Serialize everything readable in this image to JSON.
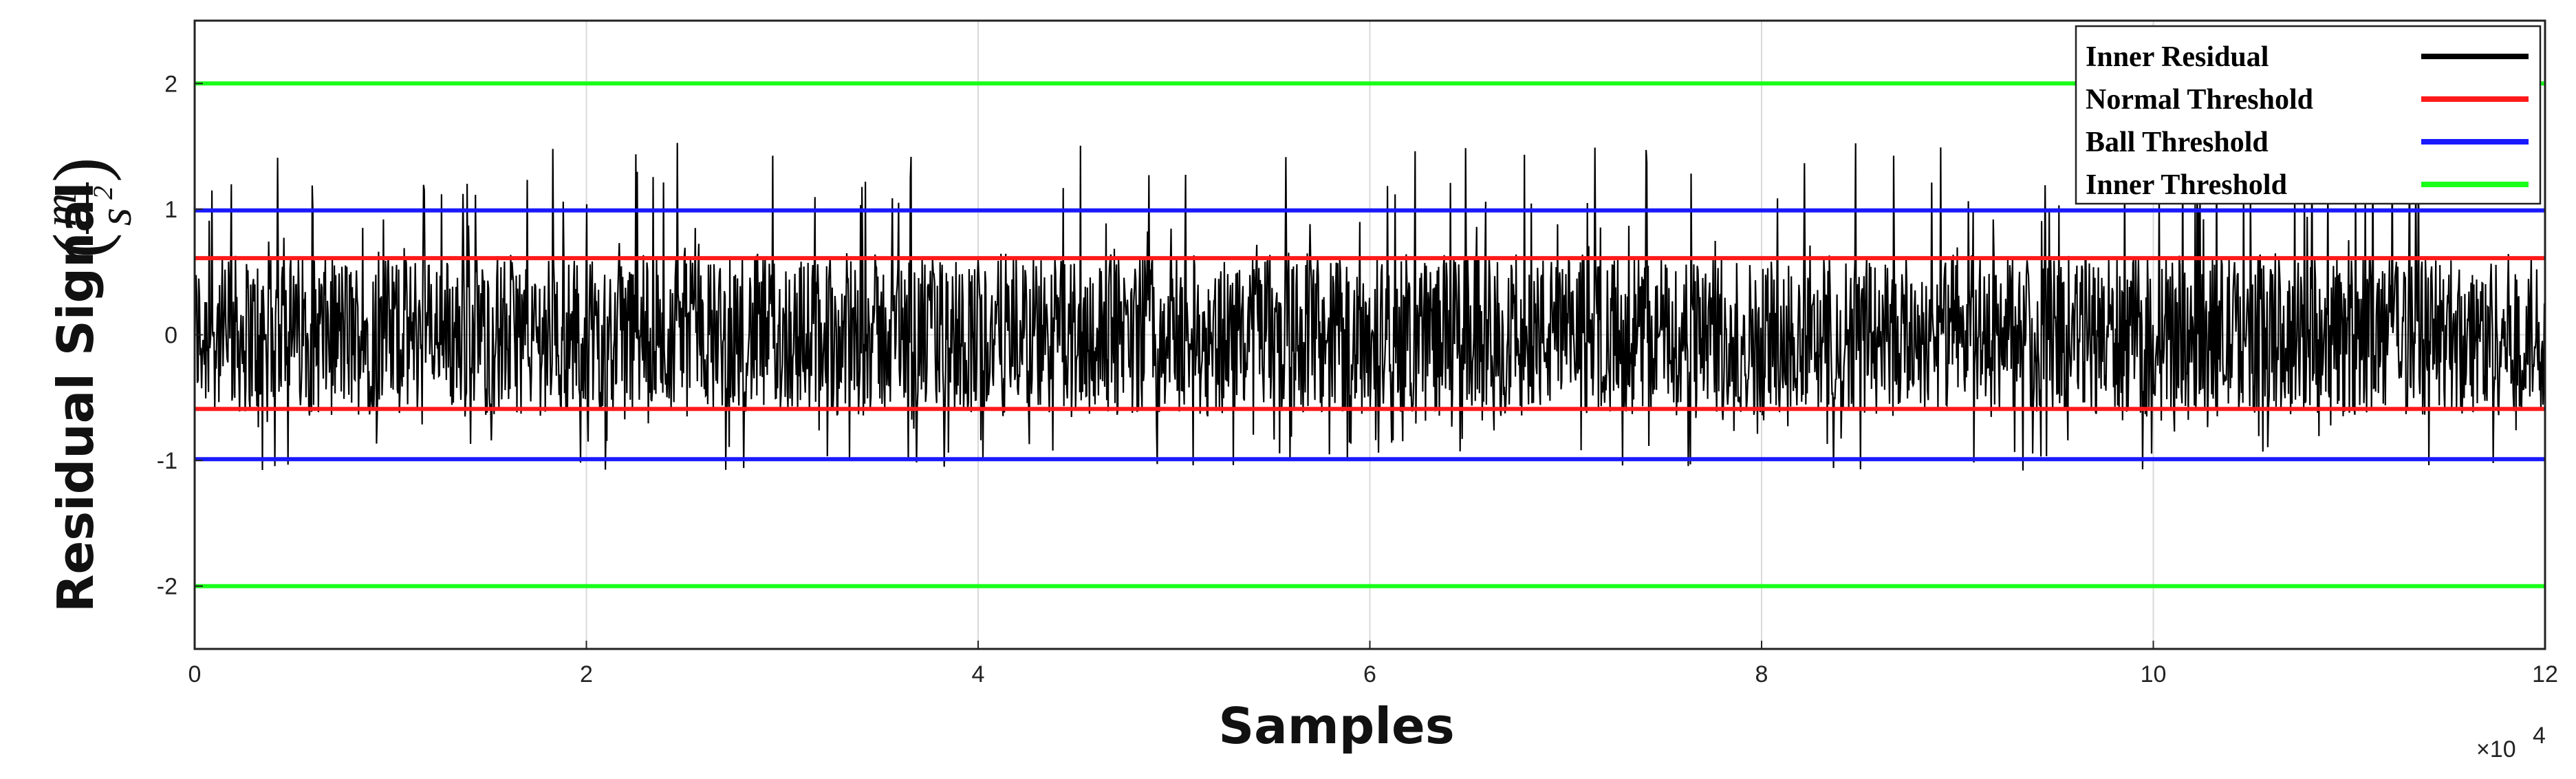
{
  "chart_data": {
    "type": "line",
    "xlabel": "Samples",
    "ylabel": "Residual Signal",
    "ylabel_unit": {
      "numerator": "m",
      "denominator": "s",
      "exponent": "2",
      "open_paren": "(",
      "close_paren": ")"
    },
    "x_multiplier": {
      "base": "×10",
      "exponent": "4"
    },
    "xlim": [
      0,
      120000
    ],
    "ylim": [
      -2.5,
      2.5
    ],
    "x_ticks": [
      {
        "value": 0,
        "label": "0"
      },
      {
        "value": 20000,
        "label": "2"
      },
      {
        "value": 40000,
        "label": "4"
      },
      {
        "value": 60000,
        "label": "6"
      },
      {
        "value": 80000,
        "label": "8"
      },
      {
        "value": 100000,
        "label": "10"
      },
      {
        "value": 120000,
        "label": "12"
      }
    ],
    "y_ticks": [
      {
        "value": 2,
        "label": "2"
      },
      {
        "value": 1,
        "label": "1"
      },
      {
        "value": 0,
        "label": "0"
      },
      {
        "value": -1,
        "label": "-1"
      },
      {
        "value": -2,
        "label": "-2"
      }
    ],
    "grid": true,
    "legend_position": "top-right",
    "series": [
      {
        "name": "Inner Residual",
        "color": "#000000",
        "kind": "noise",
        "approx_range": [
          -1.08,
          1.55
        ],
        "band": [
          -0.62,
          0.65
        ]
      },
      {
        "name": "Normal Threshold",
        "color": "#ff1a1a",
        "kind": "hlines",
        "values": [
          0.61,
          -0.59
        ]
      },
      {
        "name": "Ball Threshold",
        "color": "#1a1aff",
        "kind": "hlines",
        "values": [
          0.99,
          -0.99
        ]
      },
      {
        "name": "Inner Threshold",
        "color": "#1aff1a",
        "kind": "hlines",
        "values": [
          2.0,
          -2.0
        ]
      }
    ]
  }
}
